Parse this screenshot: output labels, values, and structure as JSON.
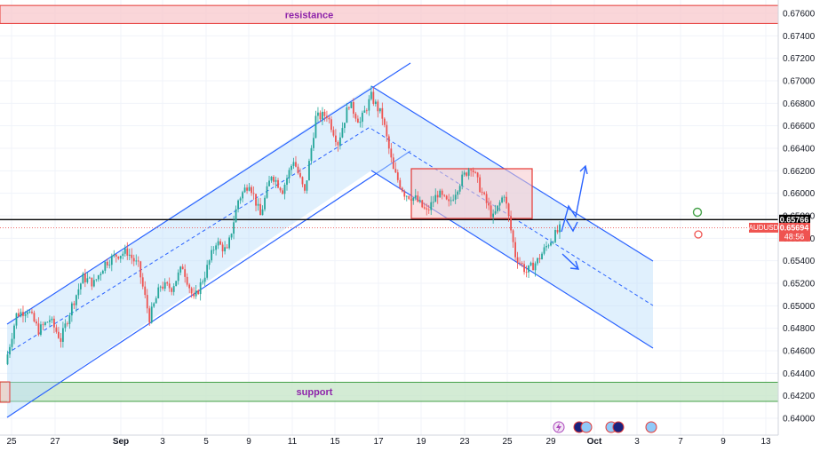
{
  "chart_data": {
    "type": "candlestick",
    "symbol": "AUDUSD",
    "ylim": [
      0.6396,
      0.6764
    ],
    "y_ticks": [
      0.676,
      0.674,
      0.672,
      0.67,
      0.668,
      0.666,
      0.664,
      0.662,
      0.66,
      0.658,
      0.656,
      0.654,
      0.652,
      0.65,
      0.648,
      0.646,
      0.644,
      0.642,
      0.64
    ],
    "y_tick_labels": [
      "0.67600",
      "0.67400",
      "0.67200",
      "0.67000",
      "0.66800",
      "0.66600",
      "0.66400",
      "0.66200",
      "0.66000",
      "0.65800",
      "0.65600",
      "0.65400",
      "0.65200",
      "0.65000",
      "0.64800",
      "0.64600",
      "0.64400",
      "0.64200",
      "0.64000"
    ],
    "x_tick_labels": [
      "25",
      "27",
      "Sep",
      "3",
      "5",
      "9",
      "11",
      "15",
      "17",
      "19",
      "23",
      "25",
      "29",
      "Oct",
      "3",
      "7",
      "9",
      "13"
    ],
    "zones": {
      "resistance": {
        "label": "resistance",
        "low": 0.6751,
        "high": 0.6767
      },
      "support": {
        "label": "support",
        "low": 0.6415,
        "high": 0.6432
      }
    },
    "price_labels": {
      "level": "0.65766",
      "current": "0.65694",
      "symbol": "AUDUSD",
      "countdown": "48:56"
    },
    "colors": {
      "up": "#26a69a",
      "down": "#ef5350",
      "channel": "#2962ff",
      "level_line": "#000000",
      "support": "#43a047",
      "resistance": "#e53935",
      "label": "#8e24aa"
    },
    "path_keypoints": [
      [
        0.6448
      ],
      [
        0.6492
      ],
      [
        0.6497
      ],
      [
        0.6478
      ],
      [
        0.6488
      ],
      [
        0.647
      ],
      [
        0.65
      ],
      [
        0.6525
      ],
      [
        0.652
      ],
      [
        0.6538
      ],
      [
        0.6545
      ],
      [
        0.6548
      ],
      [
        0.6535
      ],
      [
        0.6489
      ],
      [
        0.6518
      ],
      [
        0.6516
      ],
      [
        0.6535
      ],
      [
        0.6505
      ],
      [
        0.6528
      ],
      [
        0.6557
      ],
      [
        0.6548
      ],
      [
        0.6594
      ],
      [
        0.661
      ],
      [
        0.658
      ],
      [
        0.6617
      ],
      [
        0.6603
      ],
      [
        0.663
      ],
      [
        0.66
      ],
      [
        0.6667
      ],
      [
        0.667
      ],
      [
        0.6645
      ],
      [
        0.668
      ],
      [
        0.6663
      ],
      [
        0.6686
      ],
      [
        0.6668
      ],
      [
        0.662
      ],
      [
        0.66
      ],
      [
        0.6595
      ],
      [
        0.6583
      ],
      [
        0.66
      ],
      [
        0.659
      ],
      [
        0.661
      ],
      [
        0.6625
      ],
      [
        0.66
      ],
      [
        0.6578
      ],
      [
        0.66
      ],
      [
        0.6545
      ],
      [
        0.653
      ],
      [
        0.654
      ],
      [
        0.6556
      ],
      [
        0.6568
      ]
    ]
  }
}
